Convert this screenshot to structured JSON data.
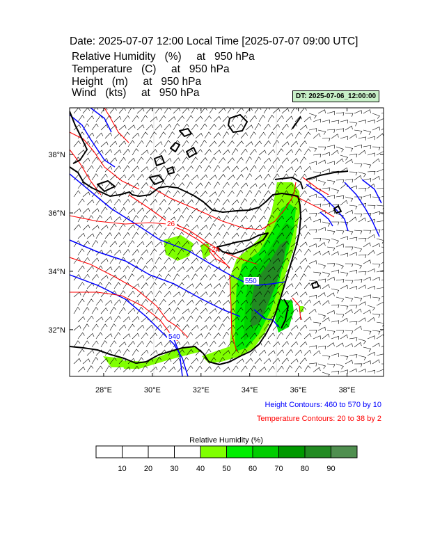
{
  "title": "Date: 2025-07-07  12:00 Local Time [2025-07-07  09:00 UTC]",
  "variables": [
    {
      "name": "Relative Humidity",
      "unit": "(%)",
      "at": "at",
      "level": "950 hPa"
    },
    {
      "name": "Temperature",
      "unit": "(C)",
      "at": "at",
      "level": "950 hPa"
    },
    {
      "name": "Height",
      "unit": "(m)",
      "at": "at",
      "level": "950 hPa"
    },
    {
      "name": "Wind",
      "unit": "(kts)",
      "at": "at",
      "level": "950 hPa"
    }
  ],
  "dt_badge": "DT: 2025-07-06_12:00:00",
  "map": {
    "lon_range": [
      26.6,
      39.5
    ],
    "lat_range": [
      30.4,
      39.6
    ],
    "lon_ticks": [
      "28°E",
      "30°E",
      "32°E",
      "34°E",
      "36°E",
      "38°E"
    ],
    "lon_tick_values": [
      28,
      30,
      32,
      34,
      36,
      38
    ],
    "lat_ticks": [
      "32°N",
      "34°N",
      "36°N",
      "38°N"
    ],
    "lat_tick_values": [
      32,
      34,
      36,
      38
    ],
    "contour_labels": {
      "height": "540",
      "temperature": "26",
      "height_mid": "550",
      "temperature_east": "24"
    },
    "colors": {
      "height": "#0000ff",
      "temperature": "#ff0000",
      "coast": "#000000"
    }
  },
  "legend": {
    "height_contours": "Height Contours: 460 to 570 by 10",
    "temperature_contours": "Temperature Contours: 20 to 38 by 2",
    "height_color": "#0000ff",
    "temperature_color": "#ff0000"
  },
  "colorbar": {
    "title": "Relative Humidity  (%)",
    "labels": [
      "10",
      "20",
      "30",
      "40",
      "50",
      "60",
      "70",
      "80",
      "90"
    ],
    "colors": [
      "#ffffff",
      "#ffffff",
      "#ffffff",
      "#ffffff",
      "#7fff00",
      "#00ee00",
      "#00cd00",
      "#009900",
      "#228b22",
      "#4f8f4f"
    ]
  }
}
